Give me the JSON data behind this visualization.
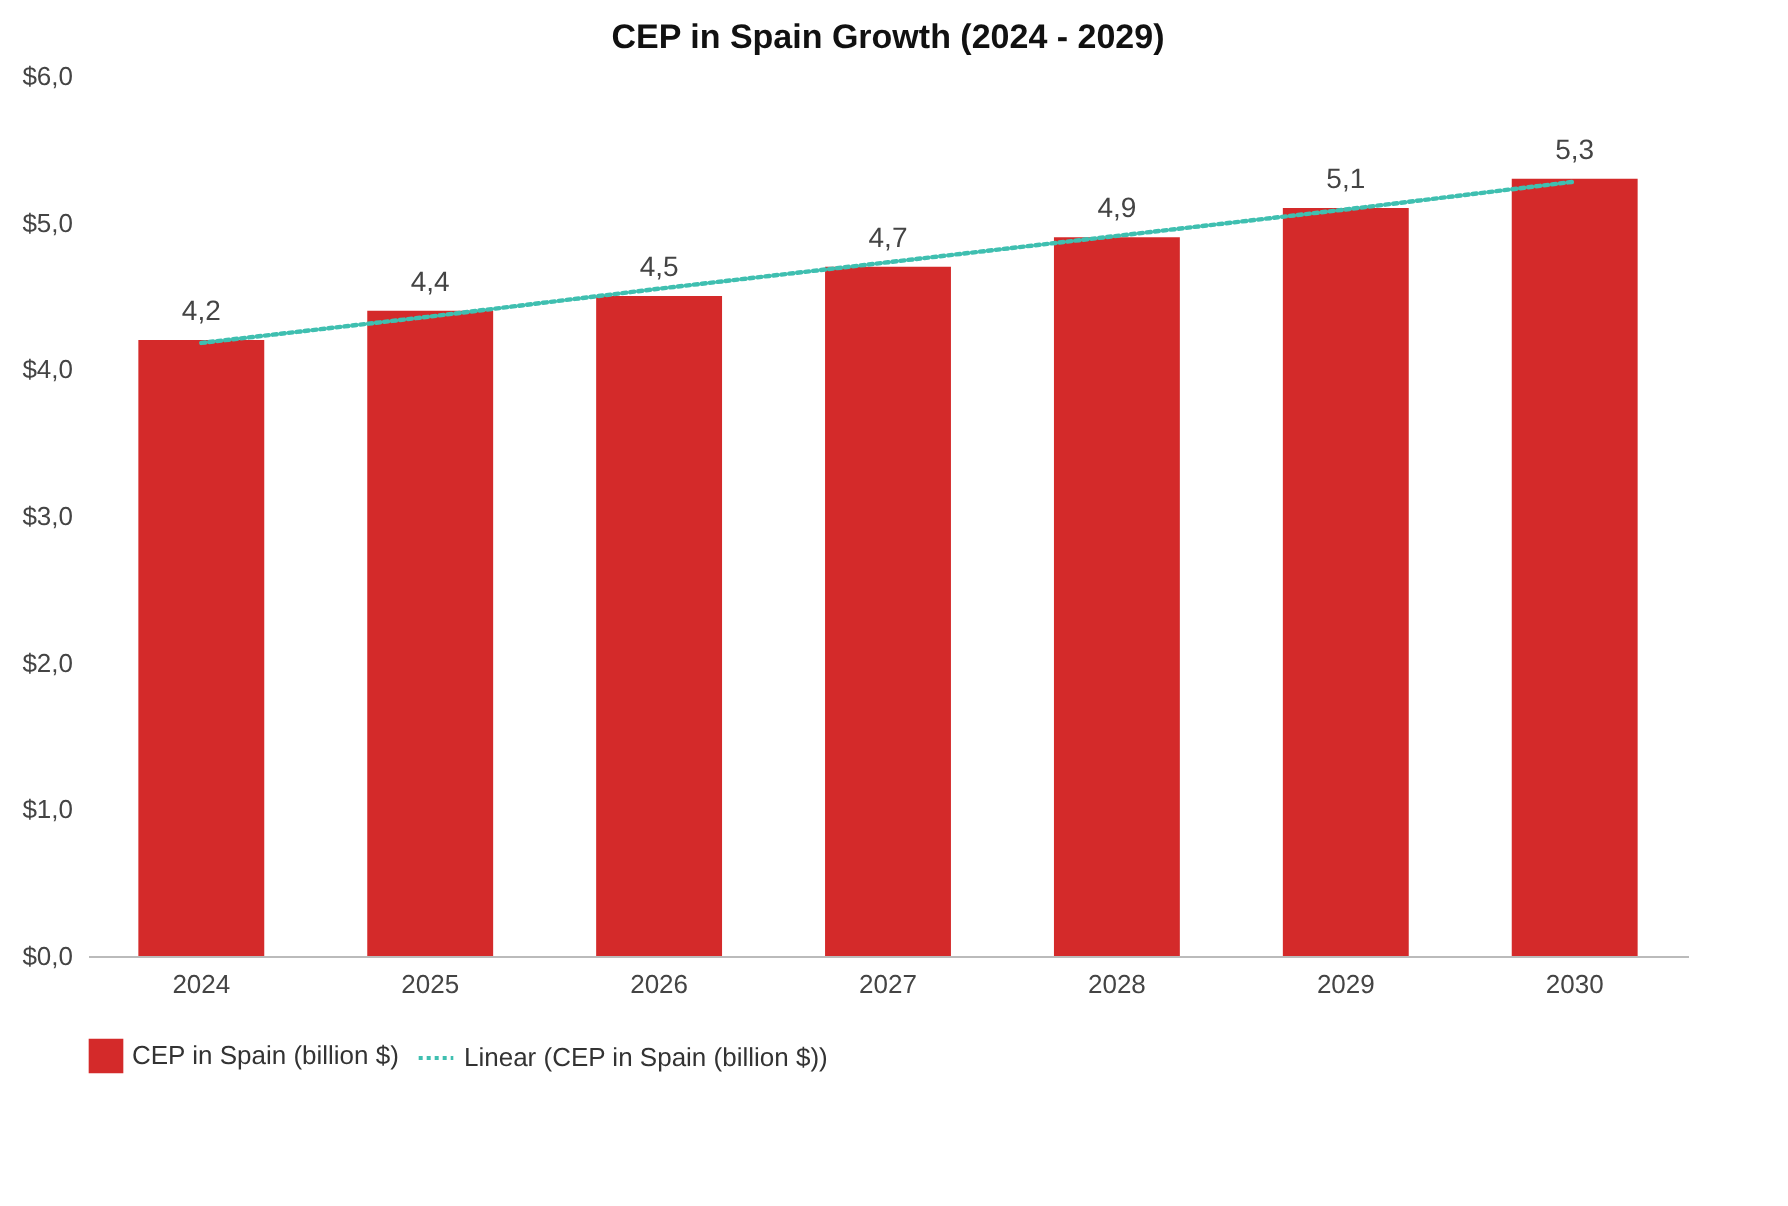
{
  "chart_data": {
    "type": "bar",
    "title": "CEP in Spain Growth (2024 - 2029)",
    "categories": [
      "2024",
      "2025",
      "2026",
      "2027",
      "2028",
      "2029",
      "2030"
    ],
    "series": [
      {
        "name": "CEP in Spain (billion $)",
        "color": "#d42a2a",
        "values": [
          4.2,
          4.4,
          4.5,
          4.7,
          4.9,
          5.1,
          5.3
        ],
        "value_labels": [
          "4,2",
          "4,4",
          "4,5",
          "4,7",
          "4,9",
          "5,1",
          "5,3"
        ]
      },
      {
        "name": "Linear (CEP in Spain (billion $))",
        "type": "line",
        "color": "#3fbfb0",
        "line_style": "dotted",
        "values": [
          4.18,
          4.36,
          4.55,
          4.73,
          4.91,
          5.09,
          5.28
        ]
      }
    ],
    "ylim": [
      0,
      6
    ],
    "yticks": [
      {
        "value": 0,
        "label": "$0,0"
      },
      {
        "value": 1,
        "label": "$1,0"
      },
      {
        "value": 2,
        "label": "$2,0"
      },
      {
        "value": 3,
        "label": "$3,0"
      },
      {
        "value": 4,
        "label": "$4,0"
      },
      {
        "value": 5,
        "label": "$5,0"
      },
      {
        "value": 6,
        "label": "$6,0"
      }
    ],
    "grid": false,
    "legend": "bottom"
  }
}
